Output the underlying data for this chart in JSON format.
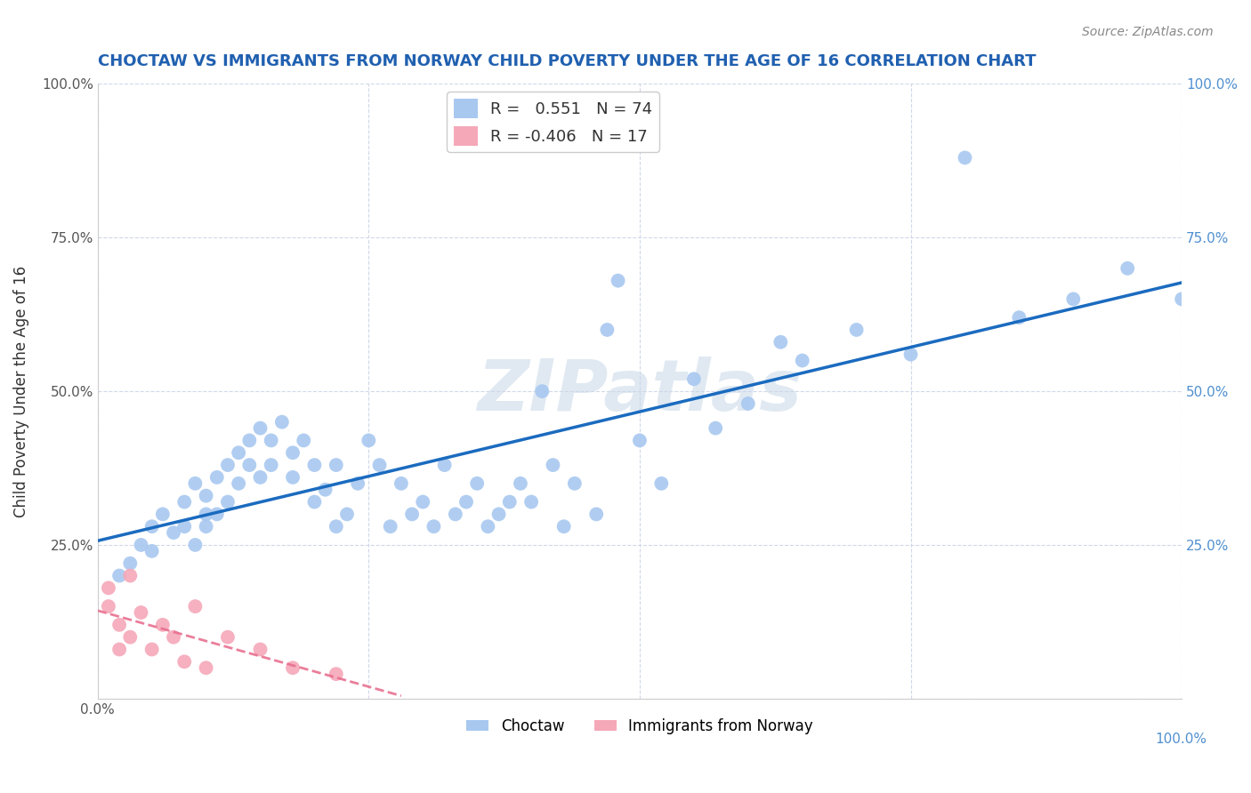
{
  "title": "CHOCTAW VS IMMIGRANTS FROM NORWAY CHILD POVERTY UNDER THE AGE OF 16 CORRELATION CHART",
  "source": "Source: ZipAtlas.com",
  "ylabel": "Child Poverty Under the Age of 16",
  "xlim": [
    0.0,
    1.0
  ],
  "ylim": [
    0.0,
    1.0
  ],
  "xticks": [
    0.0,
    0.25,
    0.5,
    0.75,
    1.0
  ],
  "yticks": [
    0.0,
    0.25,
    0.5,
    0.75,
    1.0
  ],
  "xtick_labels": [
    "0.0%",
    "",
    "",
    "",
    ""
  ],
  "ytick_labels": [
    "",
    "25.0%",
    "50.0%",
    "75.0%",
    "100.0%"
  ],
  "right_ytick_labels": [
    "",
    "25.0%",
    "50.0%",
    "75.0%",
    "100.0%"
  ],
  "choctaw_r": 0.551,
  "choctaw_n": 74,
  "norway_r": -0.406,
  "norway_n": 17,
  "choctaw_color": "#a8c8f0",
  "norway_color": "#f5a8b8",
  "choctaw_line_color": "#1a6bbf",
  "norway_line_color": "#e87090",
  "watermark": "ZIPatlas",
  "choctaw_x": [
    0.02,
    0.03,
    0.04,
    0.05,
    0.05,
    0.06,
    0.07,
    0.08,
    0.08,
    0.09,
    0.09,
    0.1,
    0.1,
    0.1,
    0.11,
    0.11,
    0.12,
    0.12,
    0.13,
    0.13,
    0.14,
    0.14,
    0.15,
    0.15,
    0.16,
    0.16,
    0.17,
    0.18,
    0.18,
    0.19,
    0.2,
    0.2,
    0.21,
    0.22,
    0.22,
    0.23,
    0.24,
    0.25,
    0.26,
    0.27,
    0.28,
    0.29,
    0.3,
    0.31,
    0.32,
    0.33,
    0.34,
    0.35,
    0.36,
    0.37,
    0.38,
    0.39,
    0.4,
    0.41,
    0.42,
    0.43,
    0.44,
    0.46,
    0.47,
    0.48,
    0.5,
    0.52,
    0.55,
    0.57,
    0.6,
    0.63,
    0.65,
    0.7,
    0.75,
    0.8,
    0.85,
    0.9,
    0.95,
    1.0
  ],
  "choctaw_y": [
    0.2,
    0.22,
    0.25,
    0.28,
    0.24,
    0.3,
    0.27,
    0.32,
    0.28,
    0.35,
    0.25,
    0.33,
    0.28,
    0.3,
    0.36,
    0.3,
    0.38,
    0.32,
    0.4,
    0.35,
    0.42,
    0.38,
    0.44,
    0.36,
    0.38,
    0.42,
    0.45,
    0.4,
    0.36,
    0.42,
    0.32,
    0.38,
    0.34,
    0.28,
    0.38,
    0.3,
    0.35,
    0.42,
    0.38,
    0.28,
    0.35,
    0.3,
    0.32,
    0.28,
    0.38,
    0.3,
    0.32,
    0.35,
    0.28,
    0.3,
    0.32,
    0.35,
    0.32,
    0.5,
    0.38,
    0.28,
    0.35,
    0.3,
    0.6,
    0.68,
    0.42,
    0.35,
    0.52,
    0.44,
    0.48,
    0.58,
    0.55,
    0.6,
    0.56,
    0.88,
    0.62,
    0.65,
    0.7,
    0.65
  ],
  "norway_x": [
    0.01,
    0.01,
    0.02,
    0.02,
    0.03,
    0.03,
    0.04,
    0.05,
    0.06,
    0.07,
    0.08,
    0.09,
    0.1,
    0.12,
    0.15,
    0.18,
    0.22
  ],
  "norway_y": [
    0.18,
    0.15,
    0.12,
    0.08,
    0.2,
    0.1,
    0.14,
    0.08,
    0.12,
    0.1,
    0.06,
    0.15,
    0.05,
    0.1,
    0.08,
    0.05,
    0.04
  ],
  "bg_color": "#ffffff",
  "grid_color": "#d0d8e8",
  "right_label_color": "#5090d0",
  "title_color": "#2060b0",
  "legend_r_color": "#4488cc",
  "legend_n_color": "#4488cc"
}
